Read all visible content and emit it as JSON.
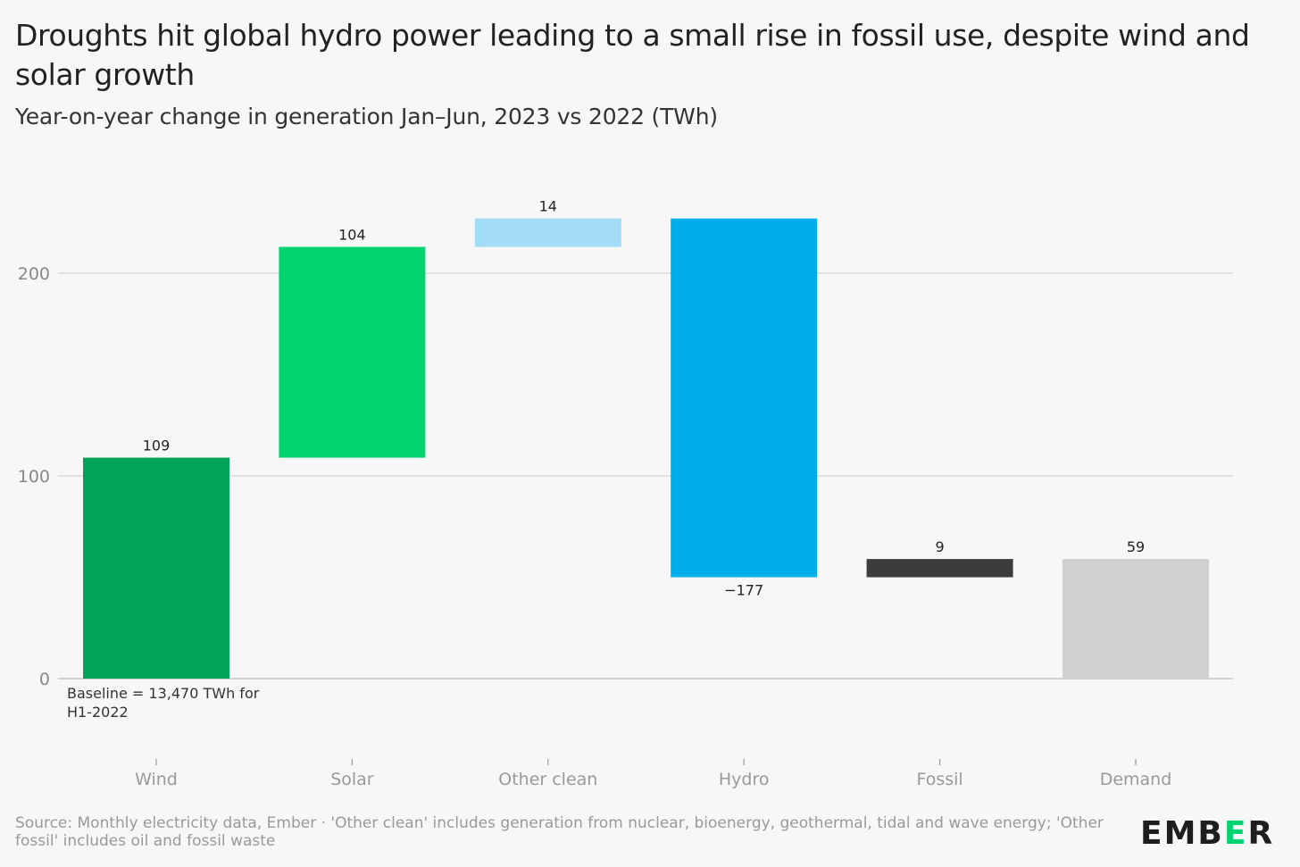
{
  "title": "Droughts hit global hydro power leading to a small rise in fossil use, despite wind and solar growth",
  "subtitle": "Year-on-year change in generation Jan–Jun, 2023 vs 2022 (TWh)",
  "footer": "Source: Monthly electricity data, Ember · 'Other clean' includes generation from nuclear, bioenergy, geothermal, tidal and wave energy; 'Other fossil' includes oil and fossil waste",
  "logo": {
    "left": "EMB",
    "e": "E",
    "right": "R"
  },
  "chart_data": {
    "type": "bar",
    "subtype": "waterfall",
    "categories": [
      "Wind",
      "Solar",
      "Other clean",
      "Hydro",
      "Fossil",
      "Demand"
    ],
    "values": [
      109,
      104,
      14,
      -177,
      9,
      59
    ],
    "value_labels": [
      "109",
      "104",
      "14",
      "−177",
      "9",
      "59"
    ],
    "colors": [
      "#00a35a",
      "#00d36f",
      "#a2dcf6",
      "#00aeea",
      "#3c3c3c",
      "#d0d0d0"
    ],
    "ylim": [
      0,
      240
    ],
    "yticks": [
      0,
      100,
      200
    ],
    "grid": true,
    "annotation": "Baseline = 13,470 TWh for H1-2022"
  }
}
